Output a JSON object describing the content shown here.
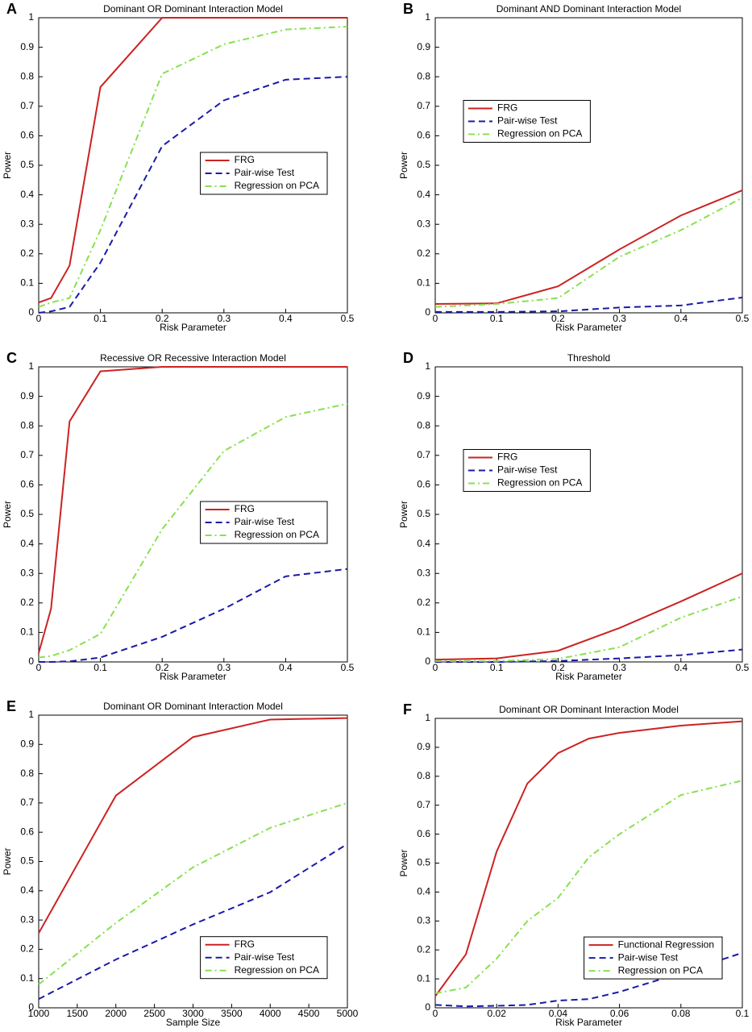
{
  "chart_data": [
    {
      "type": "line",
      "label": "A",
      "title": "Dominant OR Dominant Interaction Model",
      "xlabel": "Risk Parameter",
      "ylabel": "Power",
      "x": [
        0,
        0.02,
        0.05,
        0.1,
        0.2,
        0.3,
        0.4,
        0.5
      ],
      "series": [
        {
          "name": "FRG",
          "color": "#cc2222",
          "dash": "solid",
          "values": [
            0.035,
            0.05,
            0.16,
            0.765,
            1,
            1,
            1,
            1
          ]
        },
        {
          "name": "Pair-wise Test",
          "color": "#1a1aa8",
          "dash": "dashed",
          "values": [
            0,
            0.005,
            0.02,
            0.17,
            0.565,
            0.72,
            0.79,
            0.8
          ]
        },
        {
          "name": "Regression on PCA",
          "color": "#88e050",
          "dash": "dashdot",
          "values": [
            0.02,
            0.035,
            0.05,
            0.28,
            0.81,
            0.91,
            0.96,
            0.97
          ]
        }
      ],
      "xlim": [
        0,
        0.5
      ],
      "xticks": [
        0,
        0.1,
        0.2,
        0.3,
        0.4,
        0.5
      ],
      "ylim": [
        0,
        1
      ],
      "yticks": [
        0,
        0.1,
        0.2,
        0.3,
        0.4,
        0.5,
        0.6,
        0.7,
        0.8,
        0.9,
        1
      ],
      "legend": "center-right"
    },
    {
      "type": "line",
      "label": "B",
      "title": "Dominant AND Dominant Interaction Model",
      "xlabel": "Risk Parameter",
      "ylabel": "Power",
      "x": [
        0,
        0.1,
        0.2,
        0.3,
        0.4,
        0.5
      ],
      "series": [
        {
          "name": "FRG",
          "color": "#cc2222",
          "dash": "solid",
          "values": [
            0.03,
            0.032,
            0.09,
            0.215,
            0.33,
            0.415
          ]
        },
        {
          "name": "Pair-wise Test",
          "color": "#1a1aa8",
          "dash": "dashed",
          "values": [
            0.003,
            0.003,
            0.005,
            0.018,
            0.025,
            0.052
          ]
        },
        {
          "name": "Regression on PCA",
          "color": "#88e050",
          "dash": "dashdot",
          "values": [
            0.02,
            0.03,
            0.05,
            0.19,
            0.28,
            0.39
          ]
        }
      ],
      "xlim": [
        0,
        0.5
      ],
      "xticks": [
        0,
        0.1,
        0.2,
        0.3,
        0.4,
        0.5
      ],
      "ylim": [
        0,
        1
      ],
      "yticks": [
        0,
        0.1,
        0.2,
        0.3,
        0.4,
        0.5,
        0.6,
        0.7,
        0.8,
        0.9,
        1
      ],
      "legend": "upper-left"
    },
    {
      "type": "line",
      "label": "C",
      "title": "Recessive OR Recessive Interaction Model",
      "xlabel": "Risk Parameter",
      "ylabel": "Power",
      "x": [
        0,
        0.02,
        0.05,
        0.1,
        0.2,
        0.3,
        0.4,
        0.5
      ],
      "series": [
        {
          "name": "FRG",
          "color": "#cc2222",
          "dash": "solid",
          "values": [
            0.03,
            0.18,
            0.815,
            0.985,
            1,
            1,
            1,
            1
          ]
        },
        {
          "name": "Pair-wise Test",
          "color": "#1a1aa8",
          "dash": "dashed",
          "values": [
            0,
            0,
            0.002,
            0.015,
            0.085,
            0.18,
            0.29,
            0.315
          ]
        },
        {
          "name": "Regression on PCA",
          "color": "#88e050",
          "dash": "dashdot",
          "values": [
            0.015,
            0.02,
            0.04,
            0.095,
            0.45,
            0.715,
            0.83,
            0.875
          ]
        }
      ],
      "xlim": [
        0,
        0.5
      ],
      "xticks": [
        0,
        0.1,
        0.2,
        0.3,
        0.4,
        0.5
      ],
      "ylim": [
        0,
        1
      ],
      "yticks": [
        0,
        0.1,
        0.2,
        0.3,
        0.4,
        0.5,
        0.6,
        0.7,
        0.8,
        0.9,
        1
      ],
      "legend": "center-right"
    },
    {
      "type": "line",
      "label": "D",
      "title": "Threshold",
      "xlabel": "Risk Parameter",
      "ylabel": "Power",
      "x": [
        0,
        0.1,
        0.2,
        0.3,
        0.4,
        0.5
      ],
      "series": [
        {
          "name": "FRG",
          "color": "#cc2222",
          "dash": "solid",
          "values": [
            0.008,
            0.012,
            0.038,
            0.115,
            0.205,
            0.3
          ]
        },
        {
          "name": "Pair-wise Test",
          "color": "#1a1aa8",
          "dash": "dashed",
          "values": [
            0,
            0,
            0.003,
            0.012,
            0.023,
            0.042
          ]
        },
        {
          "name": "Regression on PCA",
          "color": "#88e050",
          "dash": "dashdot",
          "values": [
            0.003,
            0.003,
            0.01,
            0.05,
            0.15,
            0.222
          ]
        }
      ],
      "xlim": [
        0,
        0.5
      ],
      "xticks": [
        0,
        0.1,
        0.2,
        0.3,
        0.4,
        0.5
      ],
      "ylim": [
        0,
        1
      ],
      "yticks": [
        0,
        0.1,
        0.2,
        0.3,
        0.4,
        0.5,
        0.6,
        0.7,
        0.8,
        0.9,
        1
      ],
      "legend": "upper-left"
    },
    {
      "type": "line",
      "label": "E",
      "title": "Dominant OR Dominant Interaction Model",
      "xlabel": "Sample Size",
      "ylabel": "Power",
      "x": [
        1000,
        2000,
        3000,
        4000,
        5000
      ],
      "series": [
        {
          "name": "FRG",
          "color": "#cc2222",
          "dash": "solid",
          "values": [
            0.255,
            0.725,
            0.925,
            0.985,
            0.99
          ]
        },
        {
          "name": "Pair-wise Test",
          "color": "#1a1aa8",
          "dash": "dashed",
          "values": [
            0.03,
            0.165,
            0.285,
            0.395,
            0.56
          ]
        },
        {
          "name": "Regression on PCA",
          "color": "#88e050",
          "dash": "dashdot",
          "values": [
            0.08,
            0.29,
            0.48,
            0.615,
            0.7
          ]
        }
      ],
      "xlim": [
        1000,
        5000
      ],
      "xticks": [
        1000,
        1500,
        2000,
        2500,
        3000,
        3500,
        4000,
        4500,
        5000
      ],
      "ylim": [
        0,
        1
      ],
      "yticks": [
        0,
        0.1,
        0.2,
        0.3,
        0.4,
        0.5,
        0.6,
        0.7,
        0.8,
        0.9,
        1
      ],
      "legend": "lower-right"
    },
    {
      "type": "line",
      "label": "F",
      "title": "Dominant OR Dominant Interaction Model",
      "xlabel": "Risk Parameter",
      "ylabel": "Power",
      "x": [
        0,
        0.01,
        0.02,
        0.03,
        0.04,
        0.05,
        0.06,
        0.08,
        0.1
      ],
      "series": [
        {
          "name": "Functional Regression",
          "color": "#cc2222",
          "dash": "solid",
          "values": [
            0.04,
            0.185,
            0.54,
            0.775,
            0.88,
            0.93,
            0.95,
            0.975,
            0.99
          ]
        },
        {
          "name": "Pair-wise Test",
          "color": "#1a1aa8",
          "dash": "dashed",
          "values": [
            0.01,
            0.005,
            0.007,
            0.01,
            0.025,
            0.03,
            0.055,
            0.12,
            0.19
          ]
        },
        {
          "name": "Regression on PCA",
          "color": "#88e050",
          "dash": "dashdot",
          "values": [
            0.05,
            0.07,
            0.17,
            0.3,
            0.38,
            0.52,
            0.6,
            0.735,
            0.785
          ]
        }
      ],
      "xlim": [
        0,
        0.1
      ],
      "xticks": [
        0,
        0.02,
        0.04,
        0.06,
        0.08,
        0.1
      ],
      "ylim": [
        0,
        1
      ],
      "yticks": [
        0,
        0.1,
        0.2,
        0.3,
        0.4,
        0.5,
        0.6,
        0.7,
        0.8,
        0.9,
        1
      ],
      "legend": "lower-right"
    }
  ]
}
